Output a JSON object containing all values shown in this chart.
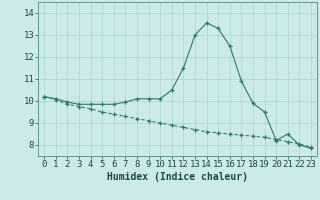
{
  "x": [
    0,
    1,
    2,
    3,
    4,
    5,
    6,
    7,
    8,
    9,
    10,
    11,
    12,
    13,
    14,
    15,
    16,
    17,
    18,
    19,
    20,
    21,
    22,
    23
  ],
  "y_curve": [
    10.2,
    10.1,
    9.95,
    9.85,
    9.85,
    9.85,
    9.85,
    9.95,
    10.1,
    10.1,
    10.1,
    10.5,
    11.5,
    13.0,
    13.55,
    13.3,
    12.5,
    10.9,
    9.9,
    9.5,
    8.2,
    8.5,
    8.0,
    7.85
  ],
  "y_linear": [
    10.2,
    10.05,
    9.85,
    9.75,
    9.65,
    9.5,
    9.4,
    9.3,
    9.2,
    9.1,
    9.0,
    8.9,
    8.8,
    8.7,
    8.6,
    8.55,
    8.5,
    8.45,
    8.4,
    8.35,
    8.25,
    8.15,
    8.05,
    7.9
  ],
  "line_color": "#2d7a6e",
  "bg_color": "#cceae7",
  "grid_color": "#aad4d0",
  "xlabel": "Humidex (Indice chaleur)",
  "ylabel_ticks": [
    8,
    9,
    10,
    11,
    12,
    13,
    14
  ],
  "xlim": [
    -0.5,
    23.5
  ],
  "ylim": [
    7.5,
    14.5
  ],
  "xlabel_fontsize": 7,
  "tick_fontsize": 6.5
}
